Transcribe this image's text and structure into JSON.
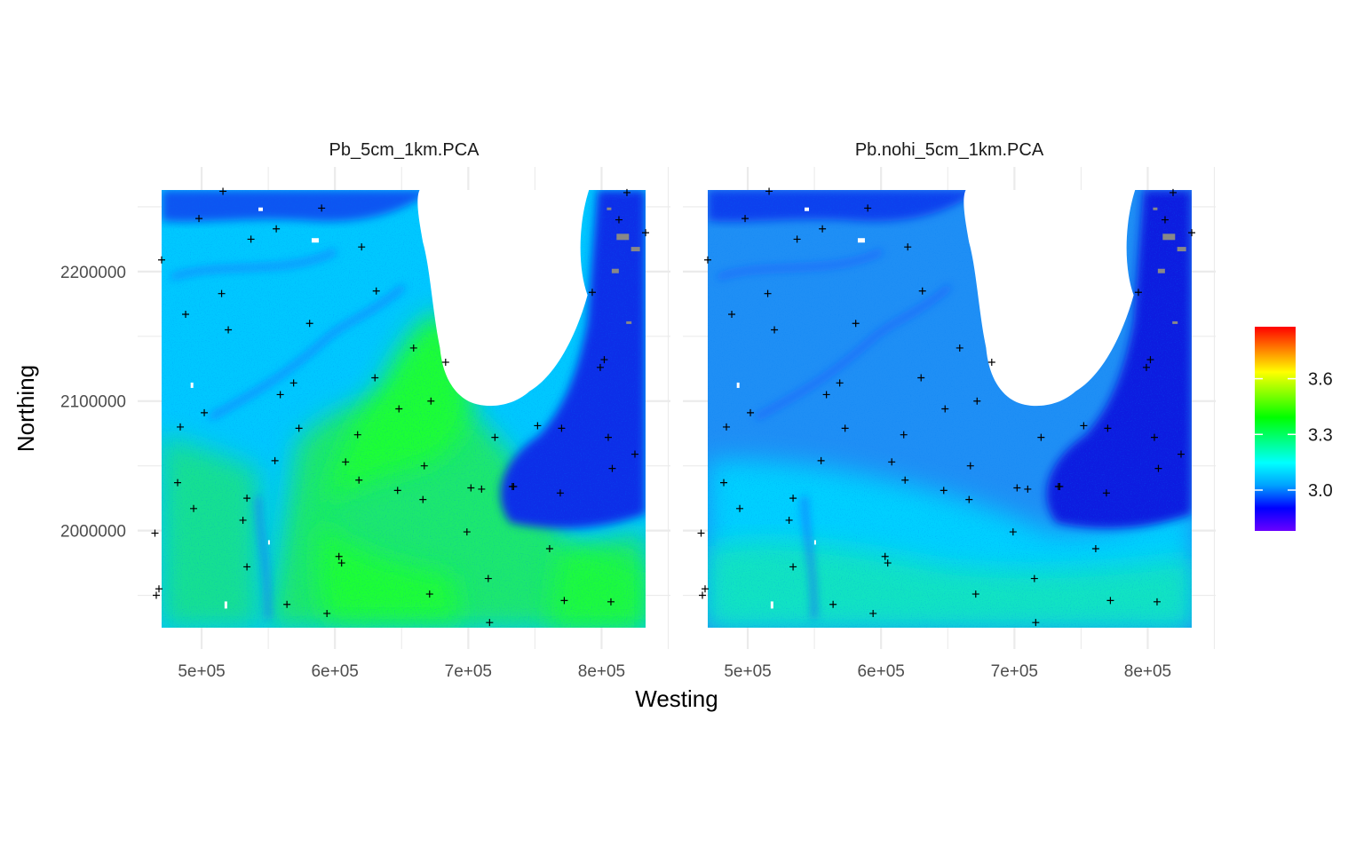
{
  "chart_data": {
    "type": "heatmap",
    "title": "",
    "xlabel": "Westing",
    "ylabel": "Northing",
    "x_ticks": [
      "5e+05",
      "6e+05",
      "7e+05",
      "8e+05"
    ],
    "x_tick_values": [
      500000,
      600000,
      700000,
      800000
    ],
    "y_ticks": [
      "2000000",
      "2100000",
      "2200000"
    ],
    "y_tick_values": [
      2000000,
      2100000,
      2200000
    ],
    "xlim": [
      452000,
      842000
    ],
    "ylim": [
      1912000,
      2268000
    ],
    "grid": true,
    "legend": {
      "position": "right",
      "ticks": [
        "3.0",
        "3.3",
        "3.6"
      ],
      "tick_values": [
        3.0,
        3.3,
        3.6
      ],
      "range": [
        2.78,
        3.88
      ],
      "colors": [
        "#6a00ff",
        "#0000ff",
        "#00a0ff",
        "#00ffff",
        "#00ff80",
        "#00ff00",
        "#80ff00",
        "#ffff00",
        "#ff8000",
        "#ff0000"
      ]
    },
    "panels": [
      {
        "title": "Pb_5cm_1km.PCA",
        "palette": {
          "lake": "#ffffff",
          "nodata": "#888888"
        },
        "zones": [
          {
            "id": "base",
            "value": 3.22,
            "color": "#00c8ff"
          },
          {
            "id": "south-center",
            "value": 3.4,
            "color": "#1ee86e"
          },
          {
            "id": "center-green",
            "value": 3.48,
            "color": "#1fff36"
          },
          {
            "id": "east-dark",
            "value": 3.02,
            "color": "#0a2fe8"
          },
          {
            "id": "north-rim",
            "value": 3.05,
            "color": "#0b54f2"
          },
          {
            "id": "nw-channels",
            "value": 3.1,
            "color": "#1a66ff"
          }
        ]
      },
      {
        "title": "Pb.nohi_5cm_1km.PCA",
        "palette": {
          "lake": "#ffffff",
          "nodata": "#888888"
        },
        "zones": [
          {
            "id": "base",
            "value": 3.15,
            "color": "#1f8ff5"
          },
          {
            "id": "south-band",
            "value": 3.24,
            "color": "#00d0ff"
          },
          {
            "id": "southwest-green",
            "value": 3.32,
            "color": "#12e8b4"
          },
          {
            "id": "east-dark",
            "value": 2.98,
            "color": "#0b1ce0"
          },
          {
            "id": "north-rim",
            "value": 3.04,
            "color": "#1140ee"
          },
          {
            "id": "nw-channels",
            "value": 3.08,
            "color": "#1a55ff"
          }
        ]
      }
    ],
    "sample_points": [
      [
        465000,
        1998000
      ],
      [
        466000,
        1950000
      ],
      [
        468000,
        1955000
      ],
      [
        470000,
        2209000
      ],
      [
        482000,
        2037000
      ],
      [
        484000,
        2080000
      ],
      [
        488000,
        2167000
      ],
      [
        494000,
        2017000
      ],
      [
        498000,
        2241000
      ],
      [
        502000,
        2091000
      ],
      [
        515000,
        2183000
      ],
      [
        516000,
        2262000
      ],
      [
        520000,
        2155000
      ],
      [
        531000,
        2008000
      ],
      [
        534000,
        1972000
      ],
      [
        534000,
        2025000
      ],
      [
        537000,
        2225000
      ],
      [
        555000,
        2054000
      ],
      [
        556000,
        2233000
      ],
      [
        559000,
        2105000
      ],
      [
        564000,
        1943000
      ],
      [
        569000,
        2114000
      ],
      [
        573000,
        2079000
      ],
      [
        581000,
        2160000
      ],
      [
        590000,
        2249000
      ],
      [
        594000,
        1936000
      ],
      [
        603000,
        1980000
      ],
      [
        605000,
        1975000
      ],
      [
        608000,
        2053000
      ],
      [
        617000,
        2074000
      ],
      [
        618000,
        2039000
      ],
      [
        620000,
        2219000
      ],
      [
        630000,
        2118000
      ],
      [
        631000,
        2185000
      ],
      [
        647000,
        2031000
      ],
      [
        648000,
        2094000
      ],
      [
        659000,
        2141000
      ],
      [
        666000,
        2024000
      ],
      [
        667000,
        2050000
      ],
      [
        671000,
        1951000
      ],
      [
        672000,
        2100000
      ],
      [
        683000,
        2130000
      ],
      [
        699000,
        1999000
      ],
      [
        702000,
        2033000
      ],
      [
        710000,
        2032000
      ],
      [
        715000,
        1963000
      ],
      [
        716000,
        1929000
      ],
      [
        720000,
        2072000
      ],
      [
        733000,
        2034000
      ],
      [
        734000,
        2034000
      ],
      [
        752000,
        2081000
      ],
      [
        761000,
        1986000
      ],
      [
        769000,
        2029000
      ],
      [
        770000,
        2079000
      ],
      [
        772000,
        1946000
      ],
      [
        793000,
        2184000
      ],
      [
        799000,
        2126000
      ],
      [
        802000,
        2132000
      ],
      [
        805000,
        2072000
      ],
      [
        807000,
        1945000
      ],
      [
        808000,
        2048000
      ],
      [
        813000,
        2240000
      ],
      [
        819000,
        2261000
      ],
      [
        825000,
        2059000
      ],
      [
        833000,
        2230000
      ]
    ]
  }
}
